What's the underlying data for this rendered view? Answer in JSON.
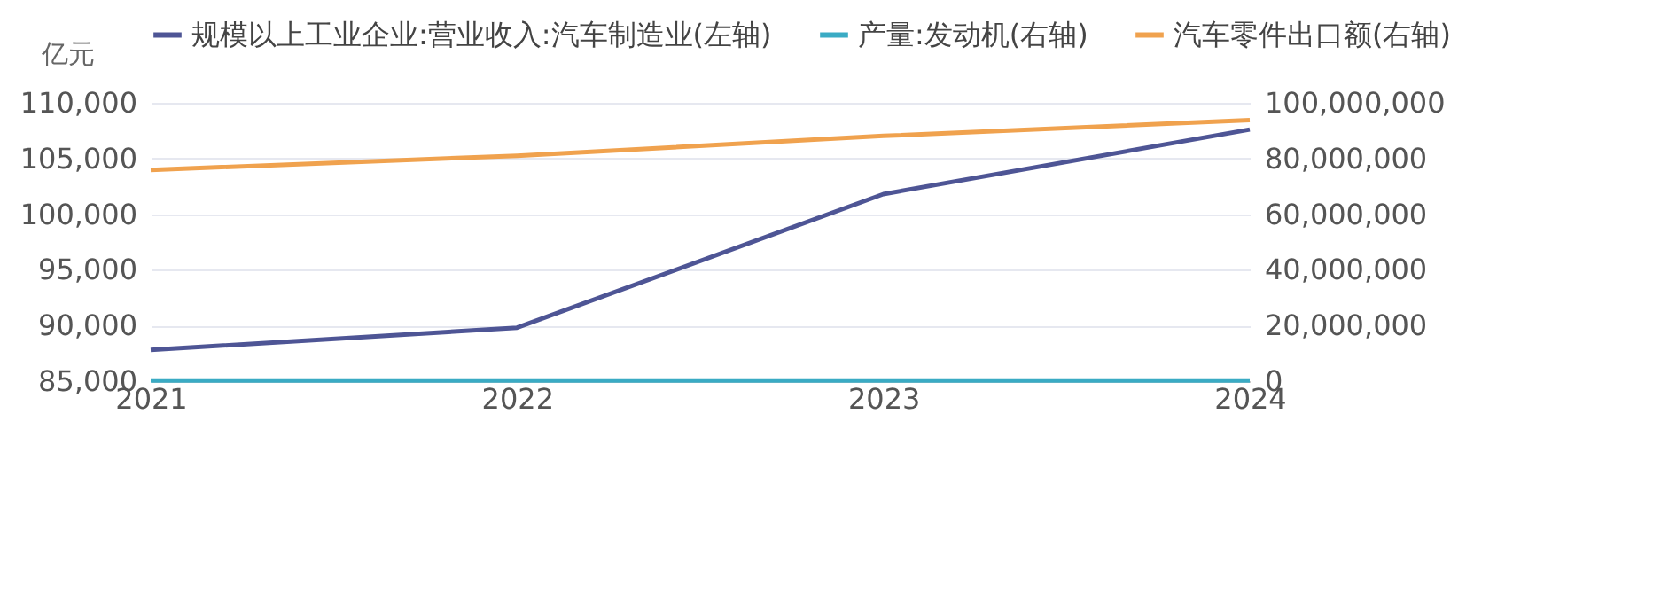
{
  "chart_data": {
    "type": "line",
    "categories": [
      "2021",
      "2022",
      "2023",
      "2024"
    ],
    "ylabel": "亿元",
    "ylim": [
      85000,
      110000
    ],
    "yticks": [
      {
        "value": 85000,
        "label": "85,000"
      },
      {
        "value": 90000,
        "label": "90,000"
      },
      {
        "value": 95000,
        "label": "95,000"
      },
      {
        "value": 100000,
        "label": "100,000"
      },
      {
        "value": 105000,
        "label": "105,000"
      },
      {
        "value": 110000,
        "label": "110,000"
      }
    ],
    "y2lim": [
      0,
      100000000
    ],
    "y2ticks": [
      0,
      {
        "value": 20000000,
        "label": "20,000,000"
      },
      {
        "value": 40000000,
        "label": "40,000,000"
      },
      {
        "value": 60000000,
        "label": "60,000,000"
      },
      {
        "value": 80000000,
        "label": "80,000,000"
      },
      {
        "value": 100000000,
        "label": "100,000,000"
      }
    ],
    "grid": "y",
    "legend": "top",
    "marker": "none",
    "line_style": "solid",
    "series": [
      {
        "name": "规模以上工业企业:营业收入:汽车制造业(左轴)",
        "color": "#4e5595",
        "values": [
          87800,
          89800,
          101800,
          107600
        ]
      },
      {
        "name": "产量:发动机(右轴)",
        "color": "#3aabc4",
        "axis": "y2",
        "values": [
          200000,
          200000,
          200000,
          200000
        ]
      },
      {
        "name": "汽车零件出口额(右轴)",
        "color": "#f0a24e",
        "axis": "y2",
        "values": [
          75900000,
          81000000,
          88100000,
          93800000
        ]
      }
    ]
  }
}
